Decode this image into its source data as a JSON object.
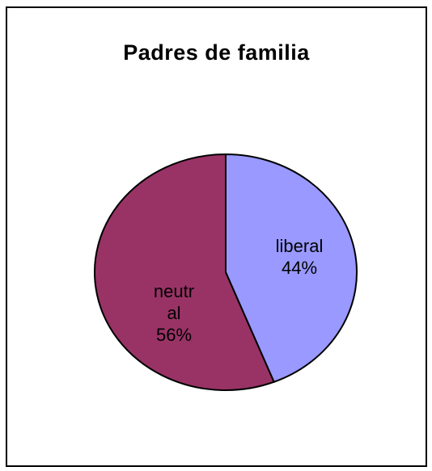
{
  "chart_data": {
    "type": "pie",
    "title": "Padres de familia",
    "slices": [
      {
        "label_lines": [
          "liberal"
        ],
        "percent_label": "44%",
        "value": 44,
        "color": "#9999ff"
      },
      {
        "label_lines": [
          "neutr",
          "al"
        ],
        "percent_label": "56%",
        "value": 56,
        "color": "#993366"
      }
    ],
    "start_angle_deg": 0,
    "direction": "clockwise",
    "legend": "none",
    "slice_outline_color": "#000000"
  }
}
